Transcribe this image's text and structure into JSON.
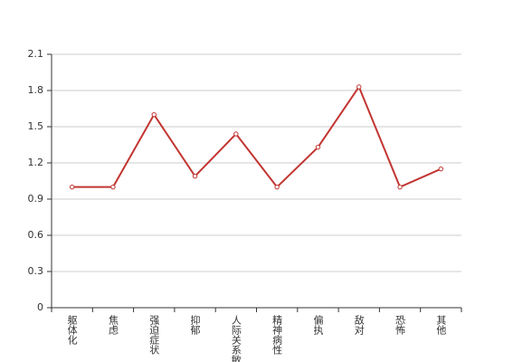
{
  "chart_data": {
    "type": "line",
    "categories": [
      "躯体化",
      "焦虑",
      "强迫症状",
      "抑郁",
      "人际关系敏感",
      "精神病性",
      "偏执",
      "敌对",
      "恐怖",
      "其他"
    ],
    "series": [
      {
        "color": "#c23531",
        "values": [
          1.0,
          1.0,
          1.6,
          1.09,
          1.44,
          1.0,
          1.33,
          1.83,
          1.0,
          1.15
        ]
      }
    ],
    "ylim": [
      0,
      2.1
    ],
    "yticks": [
      0,
      0.3,
      0.6,
      0.9,
      1.2,
      1.5,
      1.8,
      2.1
    ],
    "grid": true
  }
}
